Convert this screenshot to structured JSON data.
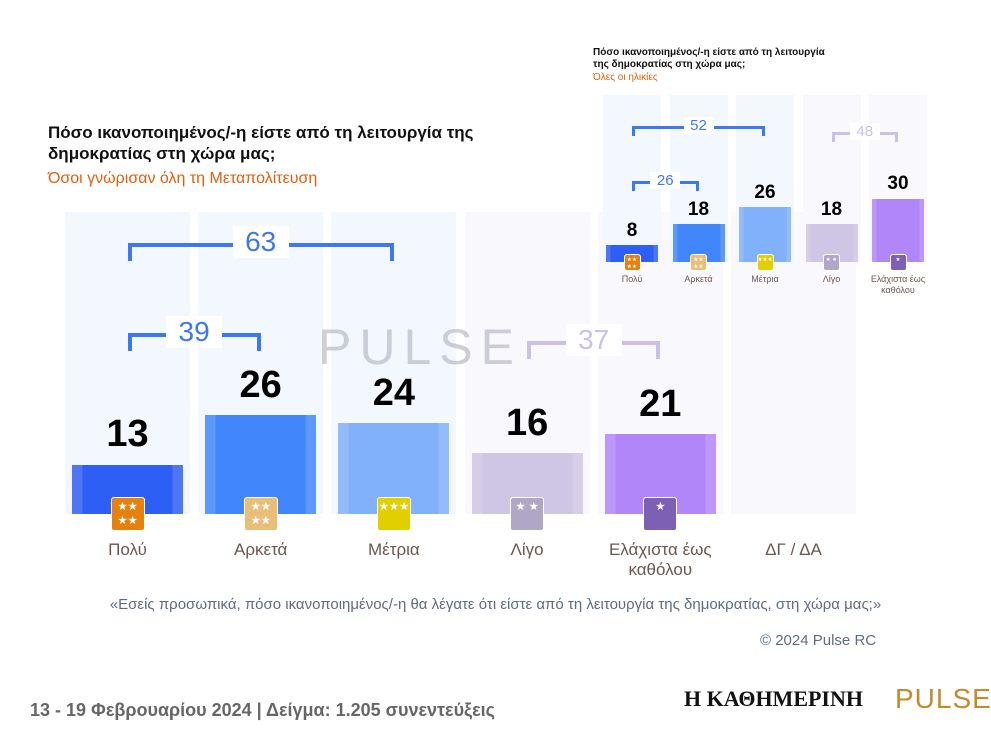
{
  "chart_data": [
    {
      "type": "bar",
      "title": "Πόσο ικανοποιημένος/-η είστε από τη λειτουργία της δημοκρατίας στη χώρα μας;",
      "subtitle": "Όσοι γνώρισαν όλη τη Μεταπολίτευση",
      "categories": [
        "Πολύ",
        "Αρκετά",
        "Μέτρια",
        "Λίγο",
        "Ελάχιστα έως καθόλου",
        "ΔΓ / ΔΑ"
      ],
      "values": [
        13,
        26,
        24,
        16,
        21,
        null
      ],
      "colors": [
        "#2d5ff5",
        "#4186fb",
        "#82b1fb",
        "#cfc6e6",
        "#b186f9",
        null
      ],
      "icons": [
        "five-stars-icon",
        "four-stars-icon",
        "three-stars-icon",
        "two-stars-icon",
        "one-star-icon",
        null
      ],
      "iconColors": [
        "#e5820f",
        "#e8bf78",
        "#e2cf00",
        "#b0a6c6",
        "#7d5fb3",
        null
      ],
      "brackets": [
        {
          "label": "39",
          "from": 0,
          "to": 1,
          "color": "#3d78f0"
        },
        {
          "label": "63",
          "from": 0,
          "to": 2,
          "color": "#3d78f0"
        },
        {
          "label": "37",
          "from": 3,
          "to": 4,
          "color": "#cbc0e6"
        }
      ]
    },
    {
      "type": "bar",
      "title": "Πόσο ικανοποιημένος/-η είστε από τη λειτουργία της δημοκρατίας στη χώρα μας;",
      "subtitle": "Όλες οι ηλικίες",
      "categories": [
        "Πολύ",
        "Αρκετά",
        "Μέτρια",
        "Λίγο",
        "Ελάχιστα έως καθόλου"
      ],
      "values": [
        8,
        18,
        26,
        18,
        30
      ],
      "colors": [
        "#2d5ff5",
        "#4186fb",
        "#82b1fb",
        "#cfc6e6",
        "#b186f9"
      ],
      "brackets": [
        {
          "label": "26",
          "from": 0,
          "to": 1,
          "color": "#3d78f0"
        },
        {
          "label": "52",
          "from": 0,
          "to": 2,
          "color": "#3d78f0"
        },
        {
          "label": "48",
          "from": 3,
          "to": 4,
          "color": "#cbc0e6"
        }
      ]
    }
  ],
  "main": {
    "title": "Πόσο ικανοποιημένος/-η είστε από τη λειτουργία της δημοκρατίας στη χώρα μας;",
    "subtitle": "Όσοι γνώρισαν όλη τη Μεταπολίτευση"
  },
  "inset": {
    "title": "Πόσο ικανοποιημένος/-η είστε από τη λειτουργία της δημοκρατίας στη χώρα μας;",
    "subtitle": "Όλες οι ηλικίες"
  },
  "watermark": "PULSE",
  "quote": "«Εσείς προσωπικά, πόσο ικανοποιημένος/-η θα λέγατε ότι είστε από τη λειτουργία της δημοκρατίας, στη χώρα μας;»",
  "copyright": "© 2024 Pulse RC",
  "footer": "13 - 19  Φεβρουαρίου  2024   |  Δείγμα:  1.205 συνεντεύξεις",
  "logos": {
    "kathimerini": "Η ΚΑΘΗΜΕΡΙΝΗ",
    "pulse": "PULSE"
  }
}
